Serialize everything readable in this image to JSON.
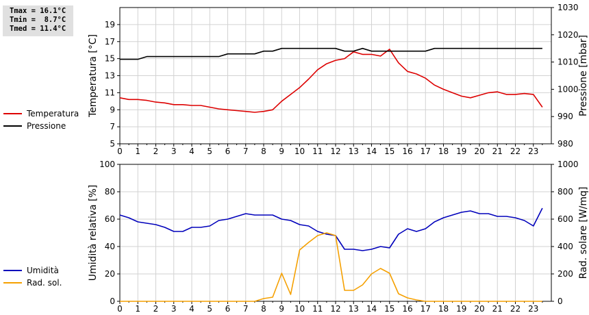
{
  "stats": {
    "tmax": "Tmax = 16.1°C",
    "tmin": "Tmin =  8.7°C",
    "tmed": "Tmed = 11.4°C"
  },
  "chart_data": [
    {
      "type": "line",
      "xlim": [
        0,
        24
      ],
      "x_ticks": [
        0,
        1,
        2,
        3,
        4,
        5,
        6,
        7,
        8,
        9,
        10,
        11,
        12,
        13,
        14,
        15,
        16,
        17,
        18,
        19,
        20,
        21,
        22,
        23
      ],
      "ylabel_left": "Temperatura [°C]",
      "ylim_left": [
        5,
        21
      ],
      "yticks_left": [
        5,
        7,
        9,
        11,
        13,
        15,
        17,
        19
      ],
      "ylabel_right": "Pressione [mbar]",
      "ylim_right": [
        980,
        1030
      ],
      "yticks_right": [
        980,
        990,
        1000,
        1010,
        1020,
        1030
      ],
      "grid": true,
      "series": [
        {
          "name": "Temperatura",
          "axis": "left",
          "color": "#dd0000",
          "x": [
            0,
            0.5,
            1,
            1.5,
            2,
            2.5,
            3,
            3.5,
            4,
            4.5,
            5,
            5.5,
            6,
            6.5,
            7,
            7.5,
            8,
            8.5,
            9,
            9.5,
            10,
            10.5,
            11,
            11.5,
            12,
            12.5,
            13,
            13.5,
            14,
            14.5,
            15,
            15.5,
            16,
            16.5,
            17,
            17.5,
            18,
            18.5,
            19,
            19.5,
            20,
            20.5,
            21,
            21.5,
            22,
            22.5,
            23,
            23.5
          ],
          "y": [
            10.4,
            10.2,
            10.2,
            10.1,
            9.9,
            9.8,
            9.6,
            9.6,
            9.5,
            9.5,
            9.3,
            9.1,
            9.0,
            8.9,
            8.8,
            8.7,
            8.8,
            9.0,
            10.0,
            10.8,
            11.6,
            12.6,
            13.7,
            14.4,
            14.8,
            15.0,
            15.8,
            15.5,
            15.5,
            15.3,
            16.1,
            14.5,
            13.5,
            13.2,
            12.7,
            11.9,
            11.4,
            11.0,
            10.6,
            10.4,
            10.7,
            11.0,
            11.1,
            10.8,
            10.8,
            10.9,
            10.8,
            9.3
          ]
        },
        {
          "name": "Pressione",
          "axis": "right",
          "color": "#000000",
          "x": [
            0,
            0.5,
            1,
            1.5,
            2,
            2.5,
            3,
            3.5,
            4,
            4.5,
            5,
            5.5,
            6,
            6.5,
            7,
            7.5,
            8,
            8.5,
            9,
            9.5,
            10,
            10.5,
            11,
            11.5,
            12,
            12.5,
            13,
            13.5,
            14,
            14.5,
            15,
            15.5,
            16,
            16.5,
            17,
            17.5,
            18,
            18.5,
            19,
            19.5,
            20,
            20.5,
            21,
            21.5,
            22,
            22.5,
            23,
            23.5
          ],
          "y": [
            1011,
            1011,
            1011,
            1012,
            1012,
            1012,
            1012,
            1012,
            1012,
            1012,
            1012,
            1012,
            1013,
            1013,
            1013,
            1013,
            1014,
            1014,
            1015,
            1015,
            1015,
            1015,
            1015,
            1015,
            1015,
            1014,
            1014,
            1015,
            1014,
            1014,
            1014,
            1014,
            1014,
            1014,
            1014,
            1015,
            1015,
            1015,
            1015,
            1015,
            1015,
            1015,
            1015,
            1015,
            1015,
            1015,
            1015,
            1015
          ]
        }
      ]
    },
    {
      "type": "line",
      "xlim": [
        0,
        24
      ],
      "x_ticks": [
        0,
        1,
        2,
        3,
        4,
        5,
        6,
        7,
        8,
        9,
        10,
        11,
        12,
        13,
        14,
        15,
        16,
        17,
        18,
        19,
        20,
        21,
        22,
        23
      ],
      "ylabel_left": "Umidità relativa [%]",
      "ylim_left": [
        0,
        100
      ],
      "yticks_left": [
        0,
        20,
        40,
        60,
        80,
        100
      ],
      "ylabel_right": "Rad. solare [W/mq]",
      "ylim_right": [
        0,
        1000
      ],
      "yticks_right": [
        0,
        200,
        400,
        600,
        800,
        1000
      ],
      "grid": true,
      "series": [
        {
          "name": "Umidità",
          "axis": "left",
          "color": "#0000bb",
          "x": [
            0,
            0.5,
            1,
            1.5,
            2,
            2.5,
            3,
            3.5,
            4,
            4.5,
            5,
            5.5,
            6,
            6.5,
            7,
            7.5,
            8,
            8.5,
            9,
            9.5,
            10,
            10.5,
            11,
            11.5,
            12,
            12.5,
            13,
            13.5,
            14,
            14.5,
            15,
            15.5,
            16,
            16.5,
            17,
            17.5,
            18,
            18.5,
            19,
            19.5,
            20,
            20.5,
            21,
            21.5,
            22,
            22.5,
            23,
            23.5
          ],
          "y": [
            63,
            61,
            58,
            57,
            56,
            54,
            51,
            51,
            54,
            54,
            55,
            59,
            60,
            62,
            64,
            63,
            63,
            63,
            60,
            59,
            56,
            55,
            51,
            49,
            48,
            38,
            38,
            37,
            38,
            40,
            39,
            49,
            53,
            51,
            53,
            58,
            61,
            63,
            65,
            66,
            64,
            64,
            62,
            62,
            61,
            59,
            55,
            68
          ]
        },
        {
          "name": "Rad. sol.",
          "axis": "right",
          "color": "#f5a000",
          "x": [
            0,
            0.5,
            1,
            1.5,
            2,
            2.5,
            3,
            3.5,
            4,
            4.5,
            5,
            5.5,
            6,
            6.5,
            7,
            7.5,
            8,
            8.5,
            9,
            9.5,
            10,
            10.5,
            11,
            11.5,
            12,
            12.5,
            13,
            13.5,
            14,
            14.5,
            15,
            15.5,
            16,
            16.5,
            17,
            17.5,
            18,
            18.5,
            19,
            19.5,
            20,
            20.5,
            21,
            21.5,
            22,
            22.5,
            23,
            23.5
          ],
          "y": [
            0,
            0,
            0,
            0,
            0,
            0,
            0,
            0,
            0,
            0,
            0,
            0,
            0,
            0,
            0,
            0,
            20,
            30,
            205,
            50,
            375,
            430,
            480,
            500,
            480,
            80,
            80,
            120,
            200,
            240,
            205,
            55,
            25,
            10,
            0,
            0,
            0,
            0,
            0,
            0,
            0,
            0,
            0,
            0,
            0,
            0,
            0,
            0
          ]
        }
      ]
    }
  ]
}
